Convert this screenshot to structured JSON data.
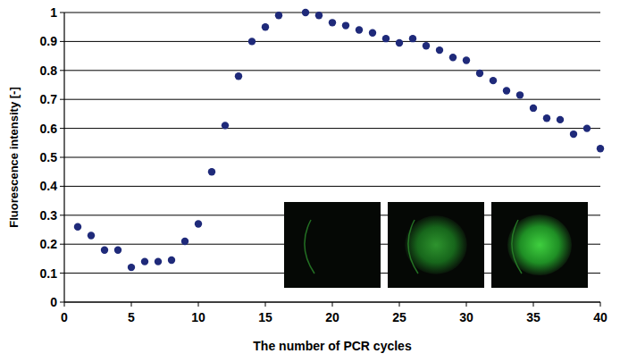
{
  "chart_data": {
    "type": "scatter",
    "x_label": "The number of PCR cycles",
    "y_label": "Fluorescence intensity [-]",
    "x": [
      1,
      2,
      3,
      4,
      5,
      6,
      7,
      8,
      9,
      10,
      11,
      12,
      13,
      14,
      15,
      16,
      18,
      19,
      20,
      21,
      22,
      23,
      24,
      25,
      26,
      27,
      28,
      29,
      30,
      31,
      32,
      33,
      34,
      35,
      36,
      37,
      38,
      39,
      40
    ],
    "values": [
      0.26,
      0.23,
      0.18,
      0.18,
      0.12,
      0.14,
      0.14,
      0.145,
      0.21,
      0.27,
      0.45,
      0.61,
      0.78,
      0.9,
      0.95,
      0.99,
      1.0,
      0.99,
      0.965,
      0.955,
      0.94,
      0.93,
      0.91,
      0.895,
      0.91,
      0.885,
      0.87,
      0.845,
      0.835,
      0.79,
      0.765,
      0.73,
      0.715,
      0.67,
      0.635,
      0.63,
      0.58,
      0.6,
      0.53
    ],
    "color": "#1f2a7a",
    "marker": "circle",
    "xlim": [
      0,
      40
    ],
    "ylim": [
      0,
      1
    ],
    "xticks": [
      0,
      5,
      10,
      15,
      20,
      25,
      30,
      35,
      40
    ],
    "yticks": [
      0,
      0.1,
      0.2,
      0.3,
      0.4,
      0.5,
      0.6,
      0.7,
      0.8,
      0.9,
      1
    ],
    "grid": true
  }
}
